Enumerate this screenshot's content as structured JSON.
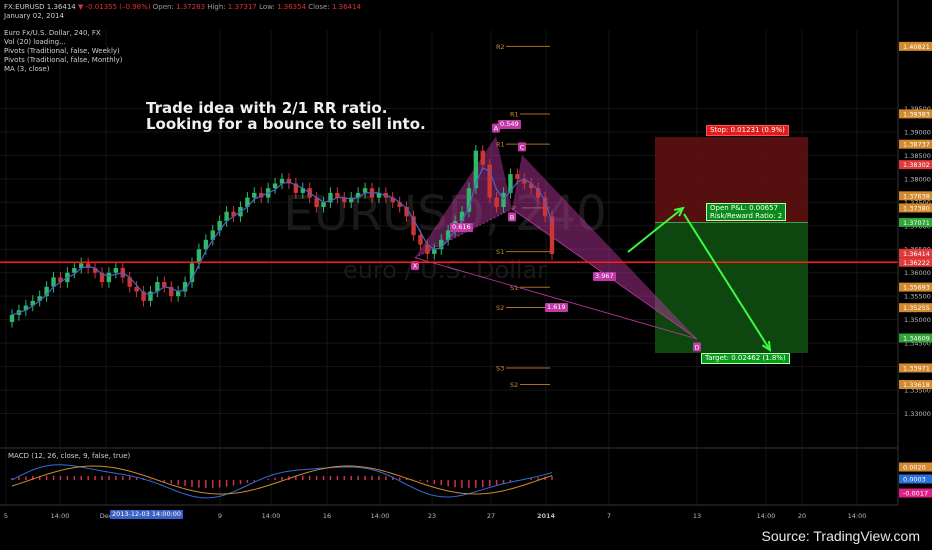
{
  "header": {
    "symbol_line": {
      "symbol": "FX:EURUSD",
      "price": "1.36414",
      "change": "▼ -0.01355 (–0.98%)",
      "open_label": "Open:",
      "open": "1.37283",
      "high_label": "High:",
      "high": "1.37317",
      "low_label": "Low:",
      "low": "1.36354",
      "close_label": "Close:",
      "close": "1.36414"
    },
    "date": "January 02, 2014",
    "title": "Euro Fx/U.S. Dollar, 240, FX",
    "indicators": [
      "Vol (20) loading...",
      "Pivots (Traditional, false, Weekly)",
      "Pivots (Traditional, false, Monthly)",
      "MA (3, close)"
    ]
  },
  "annotation": {
    "line1": "Trade idea with 2/1 RR ratio.",
    "line2": "Looking for a bounce to sell into."
  },
  "watermark": {
    "line1": "EURUSD, 240",
    "line2": "euro / U.S. Dollar"
  },
  "source": "Source: TradingView.com",
  "colors": {
    "background": "#000000",
    "bull": "#2fb86a",
    "bear": "#d03535",
    "ma": "#4a63c8",
    "pattern": "#c03aa6",
    "pivot": "#d38a2e",
    "support_line": "#ff1b1b",
    "stop_zone": "#5a1010",
    "target_zone": "#0f4a10",
    "arrow": "#3cfa3c"
  },
  "trade": {
    "stop_label": "Stop: 0.01231 (0.9%)",
    "pnl_label": "Open P&L: 0.00657",
    "rr_label": "Risk/Reward Ratio: 2",
    "target_label": "Target: 0.02462 (1.8%)"
  },
  "chart_data": {
    "type": "candlestick",
    "ylim": [
      1.3233,
      1.4117
    ],
    "price_ticks": [
      "1.39500",
      "1.39000",
      "1.38500",
      "1.38000",
      "1.37500",
      "1.37000",
      "1.36500",
      "1.36000",
      "1.35500",
      "1.35000",
      "1.34500",
      "1.34000",
      "1.33500",
      "1.33000"
    ],
    "price_tick_values": [
      1.395,
      1.39,
      1.385,
      1.38,
      1.375,
      1.37,
      1.365,
      1.36,
      1.355,
      1.35,
      1.345,
      1.34,
      1.335,
      1.33
    ],
    "x_ticks": [
      "5",
      "14:00",
      "Dec",
      "9",
      "14:00",
      "16",
      "14:00",
      "23",
      "27",
      "2014",
      "7",
      "13",
      "14:00",
      "20",
      "14:00"
    ],
    "x_tick_positions": [
      6,
      60,
      106,
      220,
      271,
      327,
      380,
      432,
      491,
      546,
      609,
      697,
      766,
      802,
      857
    ],
    "crosshair_date": "2013-12-03 14:00:00",
    "series": [
      {
        "name": "EURUSD",
        "values": [
          1.351,
          1.352,
          1.353,
          1.354,
          1.355,
          1.357,
          1.359,
          1.358,
          1.36,
          1.361,
          1.362,
          1.361,
          1.36,
          1.358,
          1.36,
          1.361,
          1.359,
          1.357,
          1.356,
          1.354,
          1.356,
          1.358,
          1.357,
          1.355,
          1.356,
          1.358,
          1.362,
          1.365,
          1.367,
          1.369,
          1.371,
          1.373,
          1.372,
          1.374,
          1.376,
          1.377,
          1.376,
          1.378,
          1.379,
          1.38,
          1.379,
          1.377,
          1.378,
          1.376,
          1.374,
          1.375,
          1.377,
          1.376,
          1.375,
          1.376,
          1.377,
          1.378,
          1.376,
          1.377,
          1.376,
          1.375,
          1.374,
          1.372,
          1.368,
          1.366,
          1.364,
          1.365,
          1.367,
          1.369,
          1.371,
          1.373,
          1.378,
          1.386,
          1.383,
          1.376,
          1.374,
          1.377,
          1.381,
          1.38,
          1.379,
          1.378,
          1.376,
          1.372,
          1.364
        ]
      }
    ],
    "price_labels": [
      {
        "text": "1.40821",
        "value": 1.40821,
        "color": "#d38a2e"
      },
      {
        "text": "1.39383",
        "value": 1.39383,
        "color": "#d38a2e"
      },
      {
        "text": "1.38737",
        "value": 1.38737,
        "color": "#d38a2e"
      },
      {
        "text": "1.38302",
        "value": 1.38302,
        "color": "#e23a3a"
      },
      {
        "text": "1.37638",
        "value": 1.37638,
        "color": "#d38a2e"
      },
      {
        "text": "1.37380",
        "value": 1.3738,
        "color": "#d38a2e"
      },
      {
        "text": "1.37071",
        "value": 1.37071,
        "color": "#2fa53a"
      },
      {
        "text": "1.36414",
        "value": 1.36414,
        "color": "#e23a3a"
      },
      {
        "text": "1.36222",
        "value": 1.36222,
        "color": "#e23a3a"
      },
      {
        "text": "1.35693",
        "value": 1.35693,
        "color": "#d38a2e"
      },
      {
        "text": "1.35255",
        "value": 1.35255,
        "color": "#d38a2e"
      },
      {
        "text": "1.34609",
        "value": 1.34609,
        "color": "#2fa53a"
      },
      {
        "text": "1.33971",
        "value": 1.33971,
        "color": "#d38a2e"
      },
      {
        "text": "1.33618",
        "value": 1.33618,
        "color": "#d38a2e"
      }
    ],
    "support_level": 1.36222,
    "pivots": [
      {
        "label": "R2",
        "value": 1.4082
      },
      {
        "label": "R1",
        "value": 1.3938
      },
      {
        "label": "R1",
        "value": 1.3874
      },
      {
        "label": "P",
        "value": 1.3738
      },
      {
        "label": "S1",
        "value": 1.3645
      },
      {
        "label": "S1",
        "value": 1.3569
      },
      {
        "label": "S2",
        "value": 1.3526
      },
      {
        "label": "S3",
        "value": 1.3397
      },
      {
        "label": "S2",
        "value": 1.3362
      }
    ],
    "pattern_points": [
      {
        "label": "X",
        "value": 1.3632
      },
      {
        "label": "A",
        "value": 1.3891
      },
      {
        "label": "B",
        "value": 1.3736
      },
      {
        "label": "C",
        "value": 1.3851
      },
      {
        "label": "D",
        "value": 1.3459
      }
    ],
    "ratios": [
      "0.616",
      "0.549",
      "3.967",
      "1.619"
    ],
    "macd": {
      "label": "MACD (12, 26, close, 9, false, true)",
      "value_labels": [
        {
          "text": "0.0020",
          "color": "#d38a2e"
        },
        {
          "text": "0.0003",
          "color": "#2c6fd8"
        },
        {
          "text": "-0.0017",
          "color": "#e0208a"
        }
      ]
    }
  }
}
